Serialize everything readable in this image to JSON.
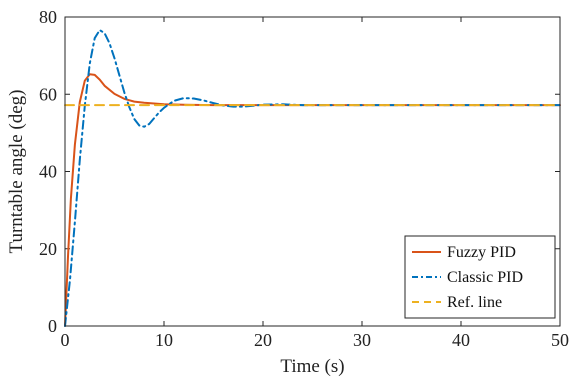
{
  "chart_data": {
    "type": "line",
    "title": "",
    "xlabel": "Time (s)",
    "ylabel": "Turntable angle (deg)",
    "xlim": [
      0,
      50
    ],
    "ylim": [
      0,
      80
    ],
    "xticks": [
      0,
      10,
      20,
      30,
      40,
      50
    ],
    "yticks": [
      0,
      20,
      40,
      60,
      80
    ],
    "grid": false,
    "legend_position": "bottom-right",
    "series": [
      {
        "name": "Fuzzy PID",
        "color": "#D95319",
        "style": "solid",
        "x": [
          0,
          0.3,
          0.6,
          1.0,
          1.5,
          2.0,
          2.5,
          3.0,
          3.5,
          4.0,
          5.0,
          6.0,
          7.0,
          8.0,
          10.0,
          12.0,
          15.0,
          20.0,
          25.0,
          30.0,
          40.0,
          50.0
        ],
        "y": [
          0,
          18,
          33,
          47,
          58,
          63.5,
          65.2,
          65.0,
          63.8,
          62.2,
          60.1,
          58.8,
          58.1,
          57.8,
          57.4,
          57.3,
          57.2,
          57.2,
          57.2,
          57.2,
          57.2,
          57.2
        ]
      },
      {
        "name": "Classic PID",
        "color": "#0072BD",
        "style": "dashdot",
        "x": [
          0,
          0.5,
          1.0,
          1.5,
          2.0,
          2.5,
          3.0,
          3.5,
          4.0,
          4.5,
          5.0,
          5.5,
          6.0,
          6.5,
          7.0,
          7.5,
          8.0,
          8.5,
          9.0,
          9.5,
          10.0,
          11.0,
          12.0,
          13.0,
          14.0,
          15.0,
          16.0,
          17.0,
          18.0,
          19.0,
          20.0,
          22.0,
          24.0,
          26.0,
          30.0,
          40.0,
          50.0
        ],
        "y": [
          0,
          12,
          27,
          43,
          57,
          68,
          74.5,
          76.6,
          75.8,
          73.2,
          69.3,
          64.8,
          60.4,
          56.6,
          53.6,
          51.9,
          51.6,
          52.3,
          53.8,
          55.3,
          56.5,
          58.3,
          59.0,
          58.9,
          58.4,
          57.7,
          57.1,
          56.8,
          56.8,
          57.0,
          57.3,
          57.4,
          57.2,
          57.2,
          57.2,
          57.2,
          57.2
        ]
      },
      {
        "name": "Ref. line",
        "color": "#EDB120",
        "style": "dashed",
        "x": [
          0,
          50
        ],
        "y": [
          57.2,
          57.2
        ]
      }
    ]
  }
}
